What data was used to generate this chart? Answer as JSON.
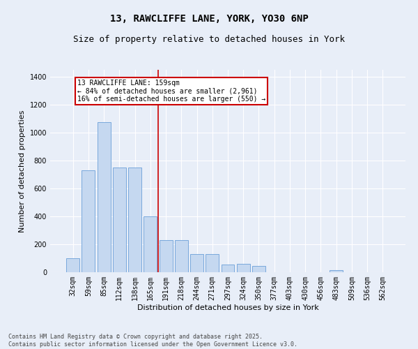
{
  "title_line1": "13, RAWCLIFFE LANE, YORK, YO30 6NP",
  "title_line2": "Size of property relative to detached houses in York",
  "xlabel": "Distribution of detached houses by size in York",
  "ylabel": "Number of detached properties",
  "categories": [
    "32sqm",
    "59sqm",
    "85sqm",
    "112sqm",
    "138sqm",
    "165sqm",
    "191sqm",
    "218sqm",
    "244sqm",
    "271sqm",
    "297sqm",
    "324sqm",
    "350sqm",
    "377sqm",
    "403sqm",
    "430sqm",
    "456sqm",
    "483sqm",
    "509sqm",
    "536sqm",
    "562sqm"
  ],
  "values": [
    100,
    730,
    1075,
    750,
    750,
    400,
    230,
    230,
    130,
    130,
    55,
    60,
    45,
    0,
    0,
    0,
    0,
    15,
    0,
    0,
    0
  ],
  "bar_color": "#c5d8f0",
  "bar_edge_color": "#6a9fd8",
  "bar_width": 0.85,
  "vline_x": 5.5,
  "vline_color": "#cc0000",
  "annotation_text": "13 RAWCLIFFE LANE: 159sqm\n← 84% of detached houses are smaller (2,961)\n16% of semi-detached houses are larger (550) →",
  "annotation_box_color": "#cc0000",
  "ylim": [
    0,
    1450
  ],
  "yticks": [
    0,
    200,
    400,
    600,
    800,
    1000,
    1200,
    1400
  ],
  "bg_color": "#e8eef8",
  "plot_bg_color": "#e8eef8",
  "footer_line1": "Contains HM Land Registry data © Crown copyright and database right 2025.",
  "footer_line2": "Contains public sector information licensed under the Open Government Licence v3.0.",
  "grid_color": "#ffffff",
  "tick_fontsize": 7,
  "label_fontsize": 8,
  "title1_fontsize": 10,
  "title2_fontsize": 9,
  "footer_fontsize": 6
}
